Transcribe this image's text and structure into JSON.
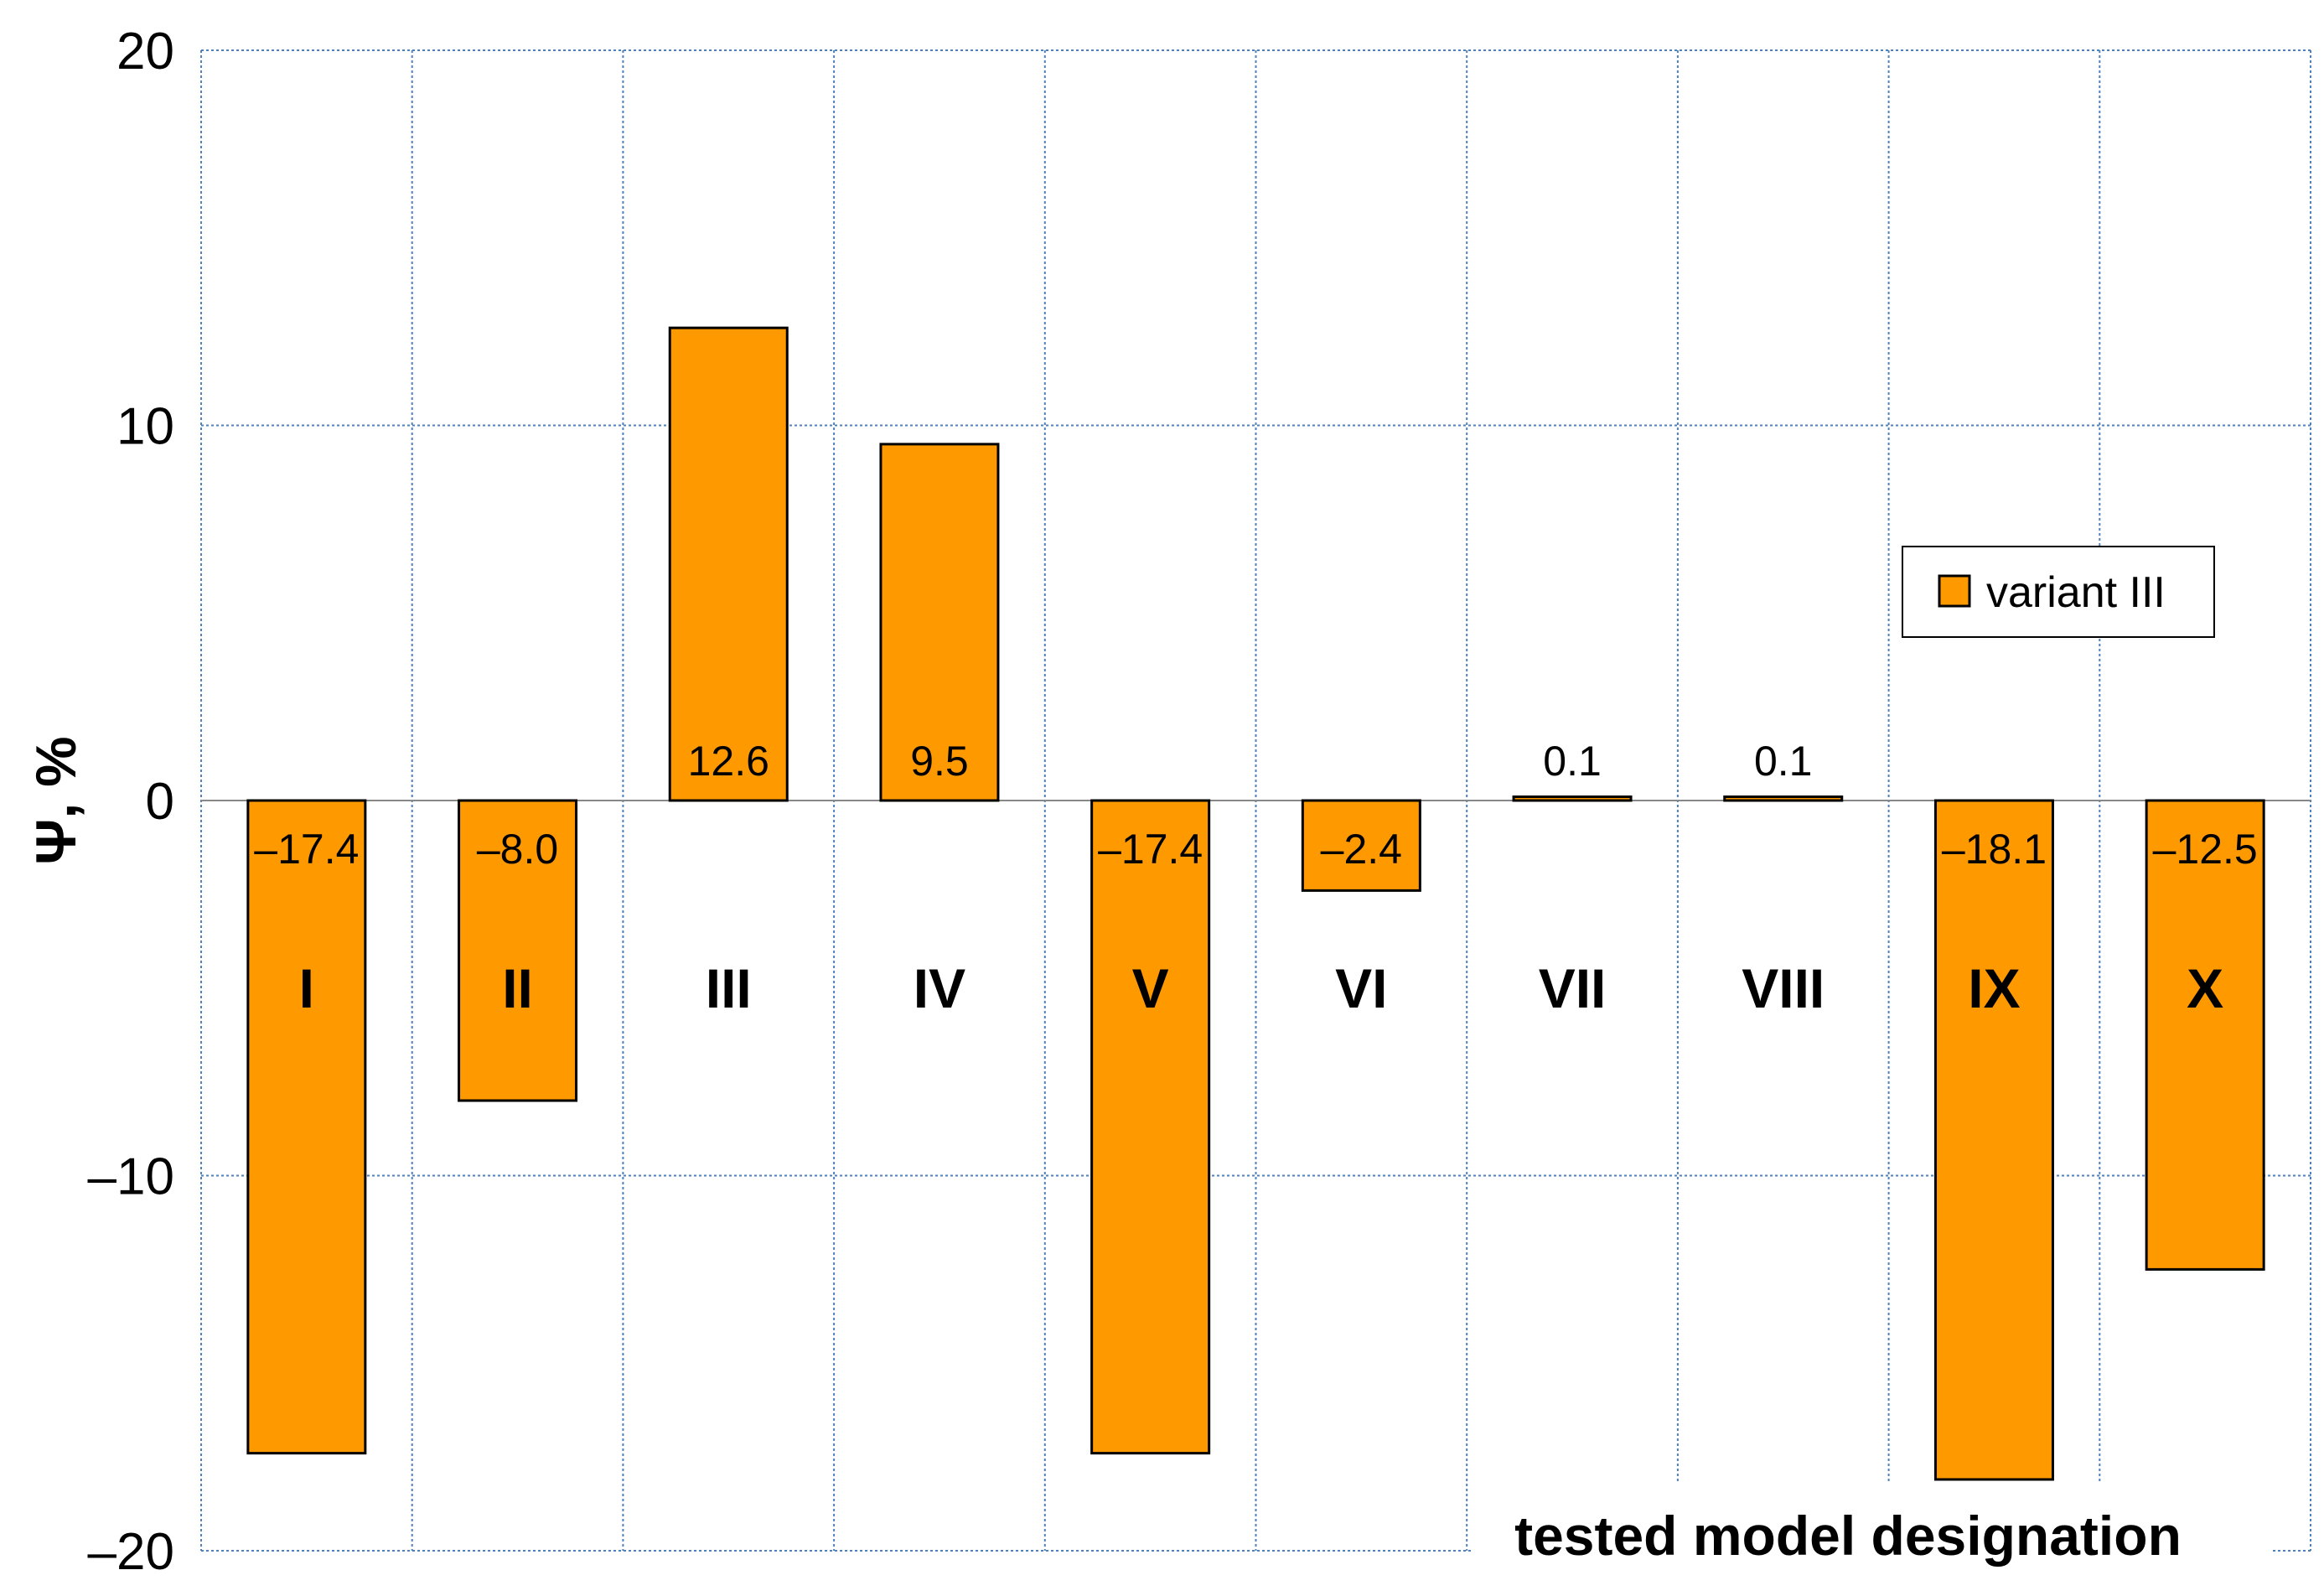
{
  "chart_data": {
    "type": "bar",
    "categories": [
      "I",
      "II",
      "III",
      "IV",
      "V",
      "VI",
      "VII",
      "VIII",
      "IX",
      "X"
    ],
    "series": [
      {
        "name": "variant III",
        "values": [
          -17.4,
          -8.0,
          12.6,
          9.5,
          -17.4,
          -2.4,
          0.1,
          0.1,
          -18.1,
          -12.5
        ],
        "labels": [
          "–17.4",
          "–8.0",
          "12.6",
          "9.5",
          "–17.4",
          "–2.4",
          "0.1",
          "0.1",
          "–18.1",
          "–12.5"
        ],
        "color": "#FF9900"
      }
    ],
    "ylabel": "Ψ, %",
    "xlabel": "tested model designation",
    "ylim": [
      -20,
      20
    ],
    "yticks": [
      20,
      10,
      0,
      -10,
      -20
    ],
    "ytick_labels": [
      "20",
      "10",
      "0",
      "–10",
      "–20"
    ],
    "grid": true,
    "grid_color": "#4F81BD",
    "legend": "right"
  }
}
